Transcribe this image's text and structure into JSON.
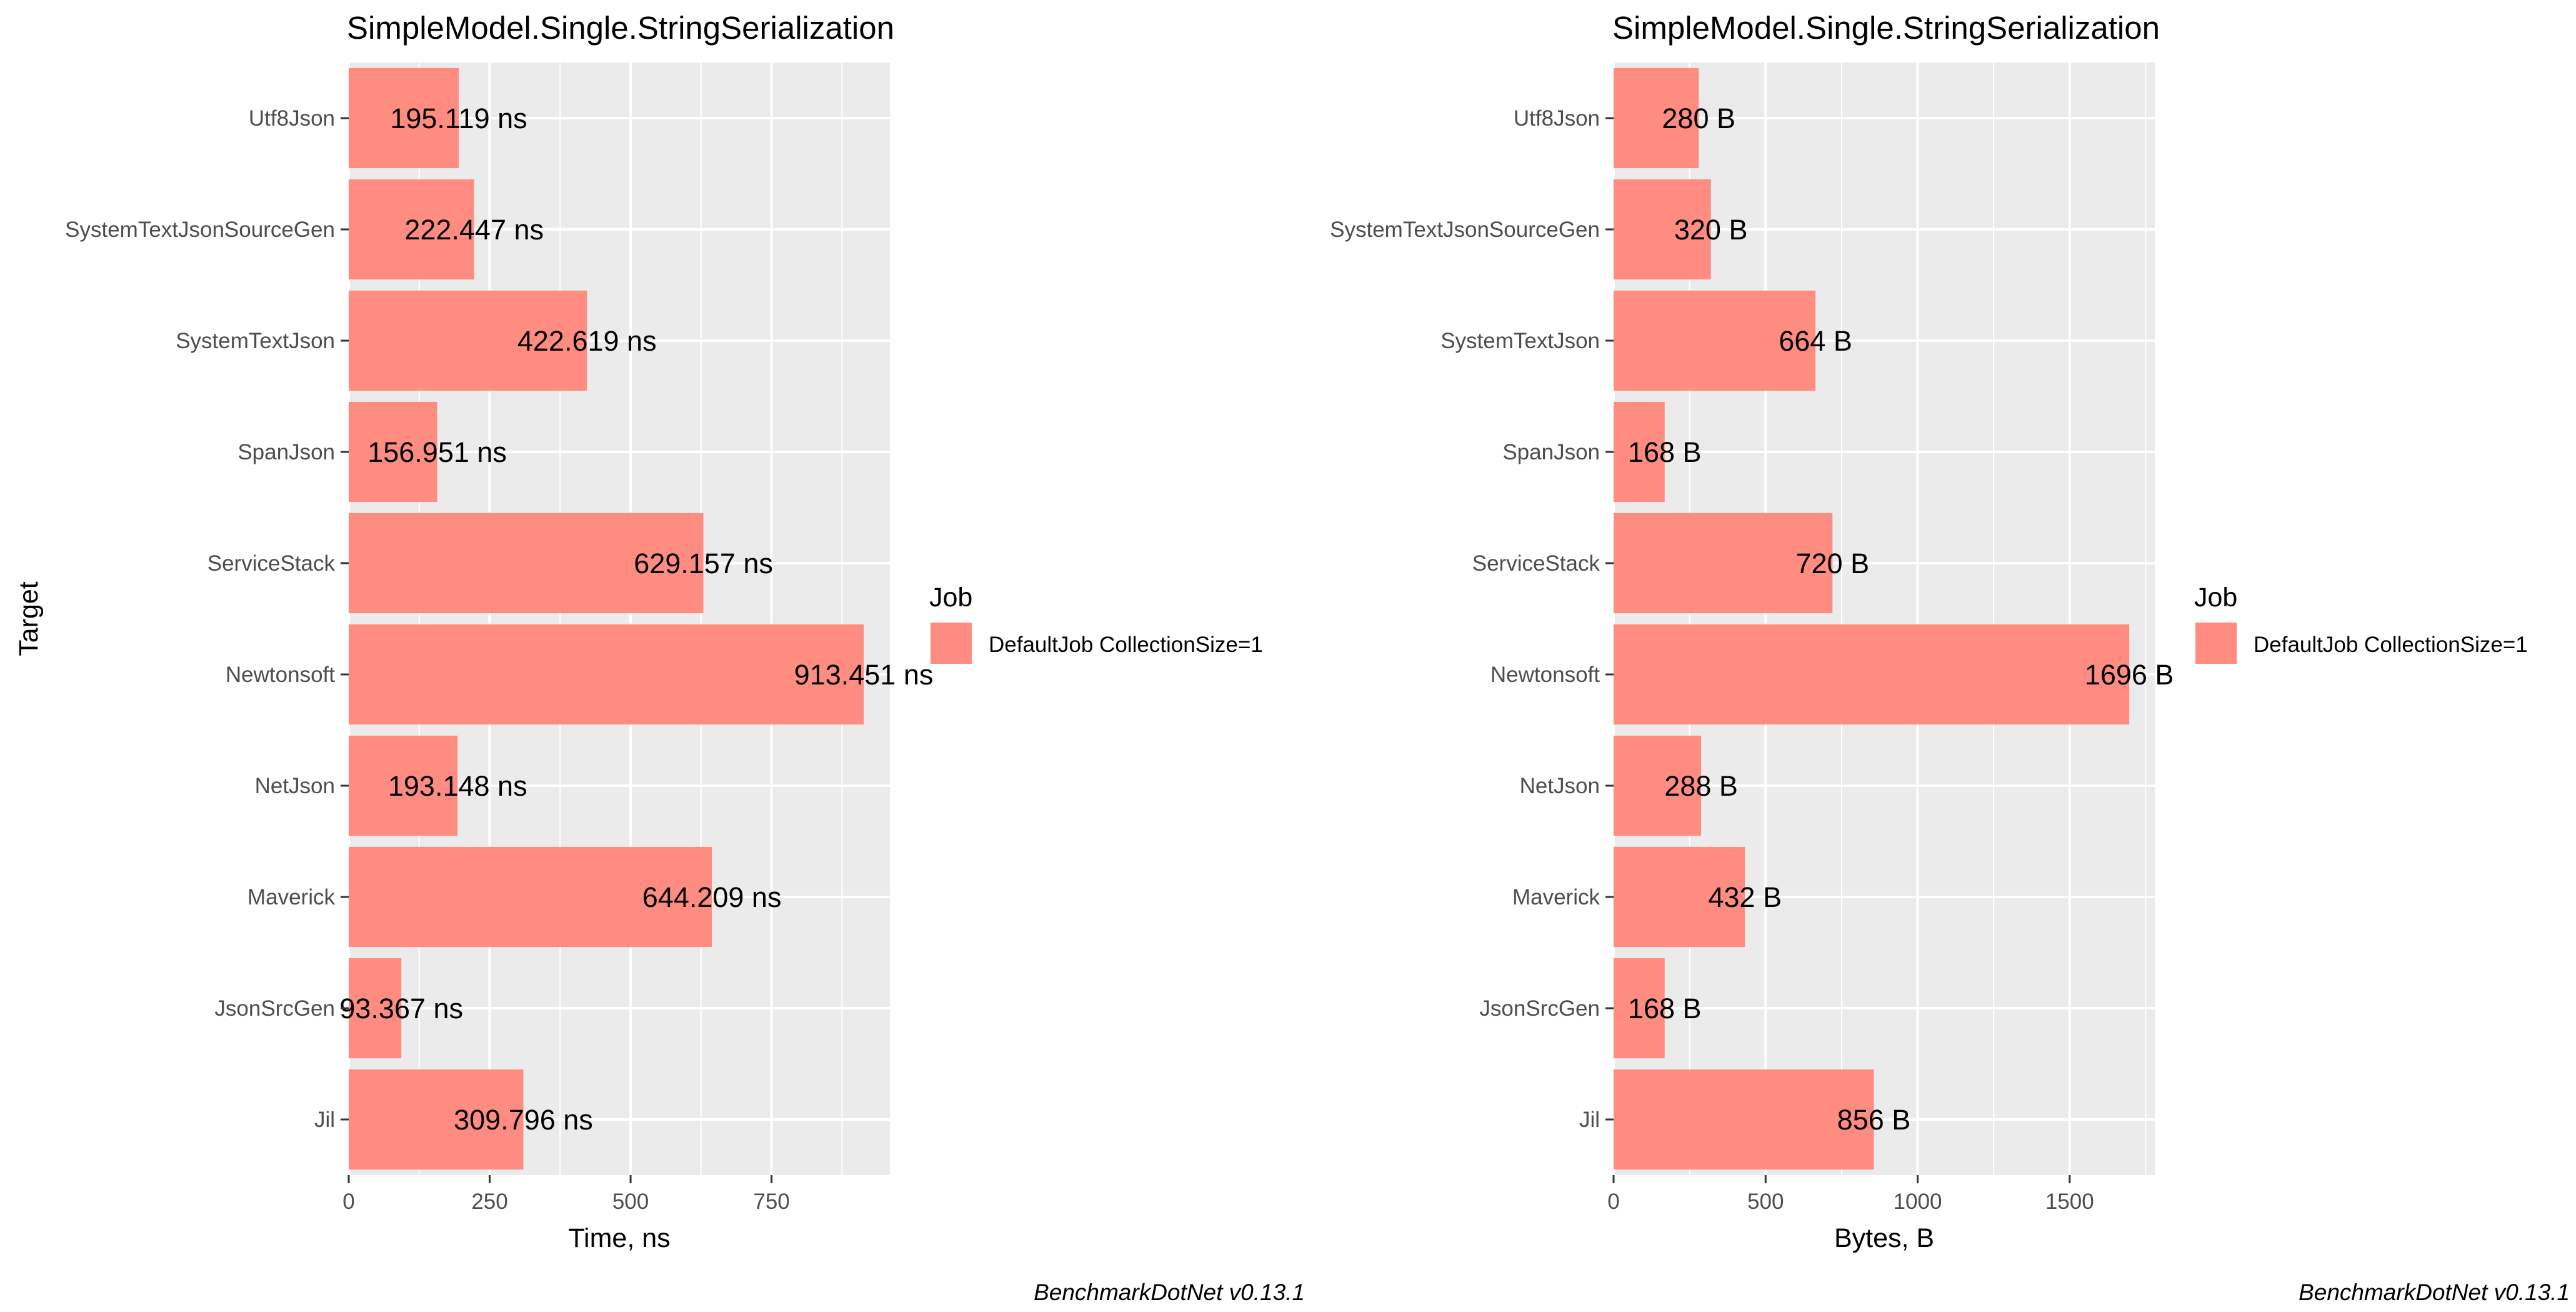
{
  "chart_data": [
    {
      "type": "bar",
      "orientation": "horizontal",
      "title": "SimpleModel.Single.StringSerialization",
      "xlabel": "Time, ns",
      "ylabel": "Target",
      "categories": [
        "Jil",
        "JsonSrcGen",
        "Maverick",
        "NetJson",
        "Newtonsoft",
        "ServiceStack",
        "SpanJson",
        "SystemTextJson",
        "SystemTextJsonSourceGen",
        "Utf8Json"
      ],
      "values": [
        309.796,
        93.367,
        644.209,
        193.148,
        913.451,
        629.157,
        156.951,
        422.619,
        222.447,
        195.119
      ],
      "data_labels": [
        "309.796 ns",
        "93.367 ns",
        "644.209 ns",
        "193.148 ns",
        "913.451 ns",
        "629.157 ns",
        "156.951 ns",
        "422.619 ns",
        "222.447 ns",
        "195.119 ns"
      ],
      "xlim": [
        0,
        960
      ],
      "xticks": [
        0,
        250,
        500,
        750
      ],
      "xtick_labels": [
        "0",
        "250",
        "500",
        "750"
      ],
      "grid": true,
      "legend": {
        "title": "Job",
        "entries": [
          "DefaultJob CollectionSize=1"
        ],
        "position": "right"
      },
      "caption": "BenchmarkDotNet v0.13.1",
      "bar_color": "#FF8C80"
    },
    {
      "type": "bar",
      "orientation": "horizontal",
      "title": "SimpleModel.Single.StringSerialization",
      "xlabel": "Bytes, B",
      "ylabel": "",
      "categories": [
        "Jil",
        "JsonSrcGen",
        "Maverick",
        "NetJson",
        "Newtonsoft",
        "ServiceStack",
        "SpanJson",
        "SystemTextJson",
        "SystemTextJsonSourceGen",
        "Utf8Json"
      ],
      "values": [
        856,
        168,
        432,
        288,
        1696,
        720,
        168,
        664,
        320,
        280
      ],
      "data_labels": [
        "856 B",
        "168 B",
        "432 B",
        "288 B",
        "1696 B",
        "720 B",
        "168 B",
        "664 B",
        "320 B",
        "280 B"
      ],
      "xlim": [
        0,
        1780
      ],
      "xticks": [
        0,
        500,
        1000,
        1500
      ],
      "xtick_labels": [
        "0",
        "500",
        "1000",
        "1500"
      ],
      "grid": true,
      "legend": {
        "title": "Job",
        "entries": [
          "DefaultJob CollectionSize=1"
        ],
        "position": "right"
      },
      "caption": "BenchmarkDotNet v0.13.1",
      "bar_color": "#FF8C80"
    }
  ],
  "colors": {
    "panel_background": "#EBEBEB",
    "grid": "#FFFFFF",
    "bar": "#FF8C80"
  }
}
